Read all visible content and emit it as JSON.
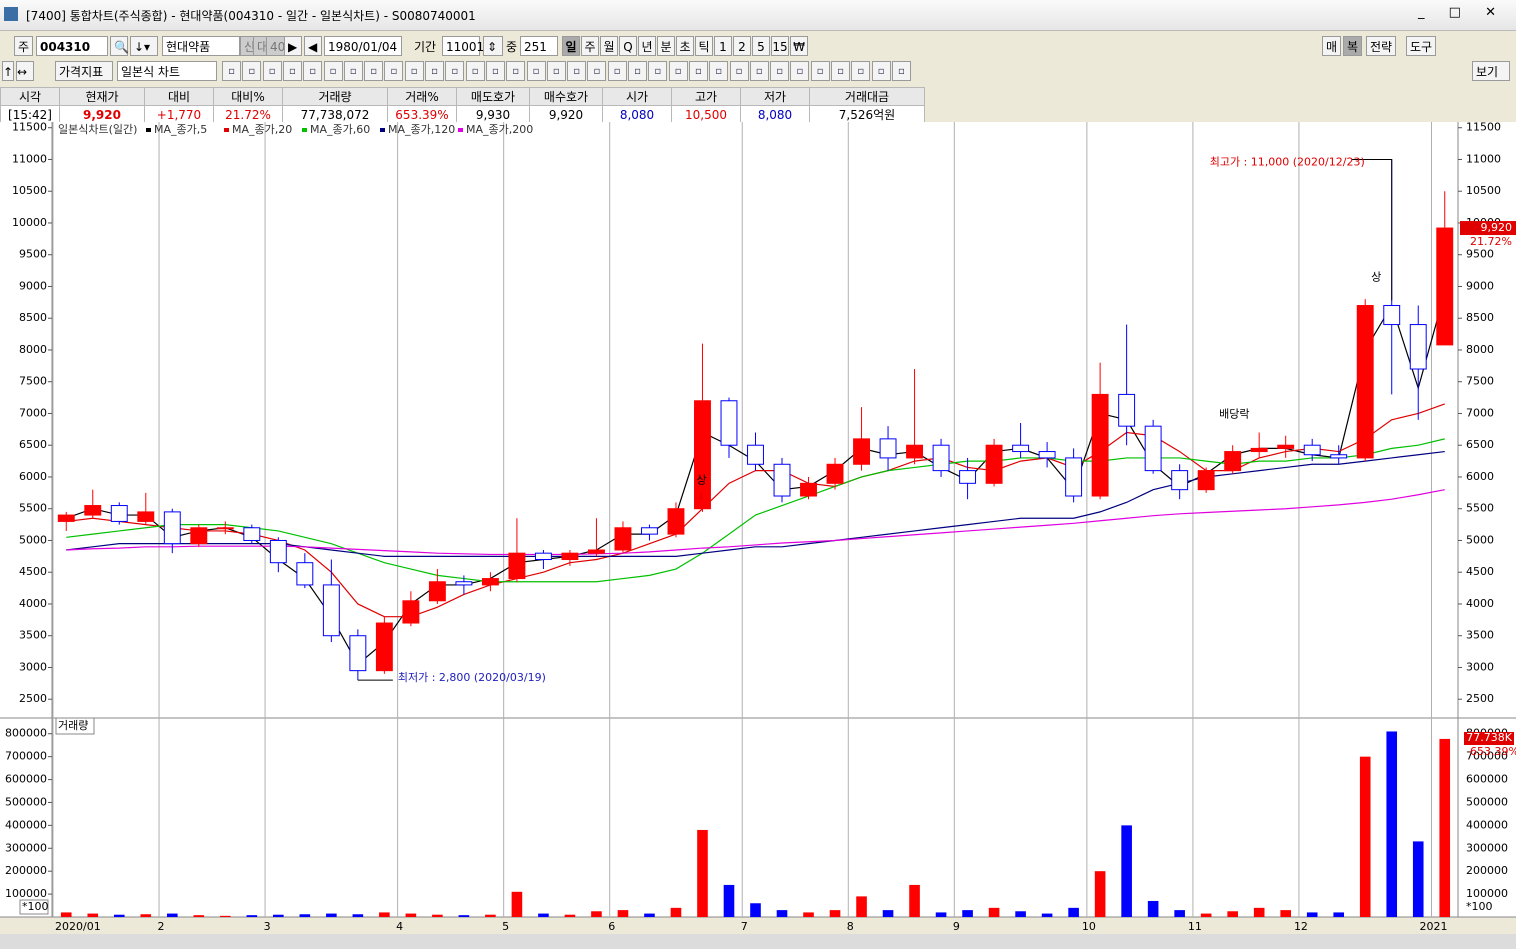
{
  "window": {
    "title": "[7400] 통합차트(주식종합) - 현대약품(004310 - 일간 - 일본식차트) - S0080740001"
  },
  "toolbar": {
    "code_label": "주",
    "code": "004310",
    "name": "현대약품",
    "flags": [
      "신",
      "대",
      "40"
    ],
    "date": "1980/01/04",
    "period_label": "기간",
    "period": "11001",
    "count_label": "중",
    "count": "251",
    "intervals": [
      "일",
      "주",
      "월",
      "Q",
      "년",
      "분",
      "초",
      "틱",
      "1",
      "2",
      "5",
      "15",
      "₩"
    ],
    "right": [
      "매",
      "복",
      "전략",
      "도구"
    ],
    "indicator": "가격지표",
    "chart_type": "일본식 차트",
    "view": "보기"
  },
  "quote": {
    "headers": [
      "시각",
      "현재가",
      "대비",
      "대비%",
      "거래량",
      "거래%",
      "매도호가",
      "매수호가",
      "시가",
      "고가",
      "저가",
      "거래대금"
    ],
    "values": [
      "[15:42]",
      "9,920",
      "+1,770",
      "21.72%",
      "77,738,072",
      "653.39%",
      "9,930",
      "9,920",
      "8,080",
      "10,500",
      "8,080",
      "7,526억원"
    ],
    "value_colors": [
      "#000",
      "#e00000",
      "#e00000",
      "#e00000",
      "#000",
      "#e00000",
      "#000",
      "#000",
      "#0000c0",
      "#e00000",
      "#0000c0",
      "#000"
    ]
  },
  "chart_data": [
    {
      "type": "candlestick",
      "legend_title": "일본식차트(일간)",
      "up_color": "#ff0000",
      "down_color": "#0000ff",
      "categories": [
        "2020/01",
        null,
        null,
        null,
        "2",
        null,
        null,
        null,
        "3",
        null,
        null,
        null,
        null,
        "4",
        null,
        null,
        null,
        "5",
        null,
        null,
        null,
        "6",
        null,
        null,
        null,
        null,
        "7",
        null,
        null,
        null,
        "8",
        null,
        null,
        null,
        "9",
        null,
        null,
        null,
        null,
        "10",
        null,
        null,
        null,
        "11",
        null,
        null,
        null,
        "12",
        null,
        null,
        null,
        null,
        "2021"
      ],
      "ohlc": [
        [
          5300,
          5450,
          5150,
          5400
        ],
        [
          5400,
          5800,
          5350,
          5550
        ],
        [
          5550,
          5600,
          5250,
          5300
        ],
        [
          5300,
          5750,
          5250,
          5450
        ],
        [
          5450,
          5500,
          4800,
          4950
        ],
        [
          4950,
          5250,
          4900,
          5200
        ],
        [
          5200,
          5300,
          5100,
          5200
        ],
        [
          5200,
          5250,
          4950,
          5000
        ],
        [
          5000,
          5050,
          4500,
          4650
        ],
        [
          4650,
          4800,
          4250,
          4300
        ],
        [
          4300,
          4700,
          3400,
          3500
        ],
        [
          3500,
          3600,
          2800,
          2950
        ],
        [
          2950,
          3800,
          2900,
          3700
        ],
        [
          3700,
          4200,
          3650,
          4050
        ],
        [
          4050,
          4550,
          4000,
          4350
        ],
        [
          4350,
          4450,
          4150,
          4300
        ],
        [
          4300,
          4500,
          4200,
          4400
        ],
        [
          4400,
          5350,
          4350,
          4800
        ],
        [
          4800,
          4850,
          4550,
          4700
        ],
        [
          4700,
          4850,
          4600,
          4800
        ],
        [
          4800,
          5350,
          4750,
          4850
        ],
        [
          4850,
          5300,
          4800,
          5200
        ],
        [
          5200,
          5250,
          5000,
          5100
        ],
        [
          5100,
          5600,
          5050,
          5500
        ],
        [
          5500,
          8100,
          5450,
          7200
        ],
        [
          7200,
          7250,
          6300,
          6500
        ],
        [
          6500,
          6700,
          6100,
          6200
        ],
        [
          6200,
          6300,
          5600,
          5700
        ],
        [
          5700,
          6000,
          5650,
          5900
        ],
        [
          5900,
          6300,
          5800,
          6200
        ],
        [
          6200,
          7100,
          6100,
          6600
        ],
        [
          6600,
          6800,
          6100,
          6300
        ],
        [
          6300,
          7700,
          6200,
          6500
        ],
        [
          6500,
          6600,
          6000,
          6100
        ],
        [
          6100,
          6300,
          5650,
          5900
        ],
        [
          5900,
          6600,
          5850,
          6500
        ],
        [
          6500,
          6850,
          6300,
          6400
        ],
        [
          6400,
          6550,
          6150,
          6300
        ],
        [
          6300,
          6450,
          5600,
          5700
        ],
        [
          5700,
          7800,
          5650,
          7300
        ],
        [
          7300,
          8400,
          6500,
          6800
        ],
        [
          6800,
          6900,
          6050,
          6100
        ],
        [
          6100,
          6200,
          5650,
          5800
        ],
        [
          5800,
          6150,
          5750,
          6100
        ],
        [
          6100,
          6500,
          6050,
          6400
        ],
        [
          6400,
          6700,
          6300,
          6450
        ],
        [
          6450,
          6650,
          6300,
          6500
        ],
        [
          6500,
          6600,
          6250,
          6350
        ],
        [
          6350,
          6500,
          6200,
          6300
        ],
        [
          6300,
          8800,
          6250,
          8700
        ],
        [
          8700,
          11000,
          7300,
          8400
        ],
        [
          8400,
          8700,
          6900,
          7700
        ],
        [
          8080,
          10500,
          8080,
          9920
        ]
      ],
      "series": [
        {
          "name": "MA_종가,5",
          "color": "#000000",
          "values": [
            5350,
            5500,
            5400,
            5400,
            5050,
            5150,
            5200,
            5050,
            4700,
            4400,
            3800,
            3050,
            3400,
            4000,
            4300,
            4300,
            4400,
            4650,
            4700,
            4750,
            4850,
            5100,
            5100,
            5400,
            6700,
            6500,
            6250,
            5800,
            5850,
            6100,
            6450,
            6350,
            6400,
            6150,
            5950,
            6400,
            6450,
            6300,
            5800,
            7000,
            6900,
            6200,
            5850,
            6050,
            6350,
            6450,
            6450,
            6350,
            6300,
            8000,
            8700,
            7400,
            8900
          ]
        },
        {
          "name": "MA_종가,20",
          "color": "#e00000",
          "values": [
            5300,
            5350,
            5300,
            5250,
            5200,
            5150,
            5150,
            5100,
            5000,
            4850,
            4500,
            4000,
            3800,
            3800,
            3950,
            4150,
            4300,
            4400,
            4500,
            4650,
            4700,
            4800,
            4950,
            5100,
            5500,
            5900,
            6100,
            6100,
            5900,
            5850,
            6000,
            6100,
            6250,
            6300,
            6150,
            6100,
            6250,
            6300,
            6150,
            6400,
            6700,
            6650,
            6400,
            6100,
            6100,
            6300,
            6400,
            6450,
            6400,
            6600,
            6900,
            7000,
            7150
          ]
        },
        {
          "name": "MA_종가,60",
          "color": "#00c000",
          "values": [
            5050,
            5100,
            5150,
            5200,
            5250,
            5250,
            5250,
            5200,
            5150,
            5050,
            4950,
            4800,
            4650,
            4550,
            4450,
            4400,
            4350,
            4350,
            4350,
            4350,
            4350,
            4400,
            4450,
            4550,
            4800,
            5100,
            5400,
            5550,
            5700,
            5850,
            6000,
            6100,
            6150,
            6200,
            6250,
            6250,
            6300,
            6300,
            6250,
            6250,
            6300,
            6300,
            6300,
            6250,
            6200,
            6250,
            6250,
            6300,
            6300,
            6350,
            6450,
            6500,
            6600
          ]
        },
        {
          "name": "MA_종가,120",
          "color": "#000080",
          "values": [
            4850,
            4900,
            4950,
            4950,
            4950,
            4950,
            4950,
            4950,
            4950,
            4900,
            4850,
            4800,
            4750,
            4750,
            4750,
            4750,
            4750,
            4750,
            4750,
            4750,
            4750,
            4750,
            4750,
            4750,
            4800,
            4850,
            4900,
            4900,
            4950,
            5000,
            5050,
            5100,
            5150,
            5200,
            5250,
            5300,
            5350,
            5350,
            5350,
            5450,
            5600,
            5800,
            5900,
            6000,
            6050,
            6100,
            6150,
            6200,
            6200,
            6250,
            6300,
            6350,
            6400
          ]
        },
        {
          "name": "MA_종가,200",
          "color": "#e000e0",
          "values": [
            4850,
            4870,
            4880,
            4900,
            4900,
            4910,
            4910,
            4910,
            4910,
            4900,
            4880,
            4860,
            4840,
            4820,
            4800,
            4790,
            4780,
            4780,
            4780,
            4780,
            4790,
            4800,
            4820,
            4850,
            4880,
            4900,
            4930,
            4960,
            4980,
            5000,
            5030,
            5060,
            5090,
            5120,
            5150,
            5180,
            5210,
            5240,
            5270,
            5310,
            5350,
            5390,
            5420,
            5440,
            5460,
            5480,
            5500,
            5530,
            5560,
            5600,
            5650,
            5720,
            5800
          ]
        }
      ],
      "ylim": [
        2220,
        11590
      ],
      "yticks": [
        2500,
        3000,
        3500,
        4000,
        4500,
        5000,
        5500,
        6000,
        6500,
        7000,
        7500,
        8000,
        8500,
        9000,
        9500,
        10000,
        10500,
        11000,
        11500
      ],
      "last_price": "9,920",
      "last_change": "21.72%",
      "annotations": {
        "high": "최고가 : 11,000 (2020/12/23)",
        "low": "최저가 : 2,800 (2020/03/19)",
        "limit_up": "상",
        "limit_up_2": "상",
        "ex_dividend": "배당락"
      }
    },
    {
      "type": "bar",
      "name": "거래량",
      "unit": "*100",
      "values": [
        20000,
        15000,
        10000,
        12000,
        15000,
        8000,
        5000,
        8000,
        10000,
        12000,
        15000,
        12000,
        20000,
        15000,
        10000,
        8000,
        10000,
        110000,
        15000,
        10000,
        25000,
        30000,
        15000,
        40000,
        380000,
        140000,
        60000,
        30000,
        20000,
        30000,
        90000,
        30000,
        140000,
        20000,
        30000,
        40000,
        25000,
        15000,
        40000,
        200000,
        400000,
        70000,
        30000,
        15000,
        25000,
        40000,
        30000,
        20000,
        20000,
        700000,
        810000,
        330000,
        777380
      ],
      "ylim": [
        0,
        860000
      ],
      "yticks": [
        100000,
        200000,
        300000,
        400000,
        500000,
        600000,
        700000,
        800000
      ],
      "last_volume": "77.738K",
      "last_ratio": "653.39%"
    }
  ]
}
